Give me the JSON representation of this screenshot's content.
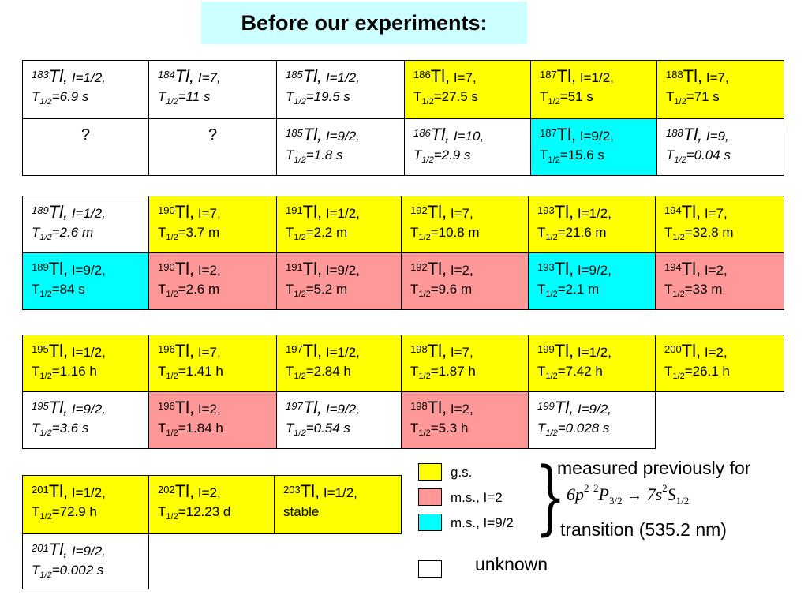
{
  "title": "Before our experiments:",
  "isotope_symbol": "Tl",
  "colors": {
    "ground_state": "#ffff00",
    "ms_i2": "#ff9999",
    "ms_i92": "#00ffff",
    "unknown": "#ffffff",
    "title_bg": "#ccffff"
  },
  "cells": [
    {
      "mass": "183",
      "spin": "I=1/2,",
      "half": "T",
      "halfsub": "1/2",
      "halfval": "=6.9 s",
      "fill": "w",
      "italic": true
    },
    {
      "mass": "184",
      "spin": "I=7,",
      "half": "T",
      "halfsub": "1/2",
      "halfval": "=11 s",
      "fill": "w",
      "italic": true
    },
    {
      "mass": "185",
      "spin": "I=1/2,",
      "half": "T",
      "halfsub": "1/2",
      "halfval": "=19.5 s",
      "fill": "w",
      "italic": true
    },
    {
      "mass": "186",
      "spin": "I=7,",
      "half": "T",
      "halfsub": "1/2",
      "halfval": "=27.5 s",
      "fill": "y",
      "italic": false
    },
    {
      "mass": "187",
      "spin": "I=1/2,",
      "half": "T",
      "halfsub": "1/2",
      "halfval": "=51 s",
      "fill": "y",
      "italic": false
    },
    {
      "mass": "188",
      "spin": "I=7,",
      "half": "T",
      "halfsub": "1/2",
      "halfval": "=71 s",
      "fill": "y",
      "italic": false
    },
    {
      "unknown": "?",
      "fill": "w"
    },
    {
      "unknown": "?",
      "fill": "w"
    },
    {
      "mass": "185",
      "spin": "I=9/2,",
      "half": "T",
      "halfsub": "1/2",
      "halfval": "=1.8 s",
      "fill": "w",
      "italic": true
    },
    {
      "mass": "186",
      "spin": "I=10,",
      "half": "T",
      "halfsub": "1/2",
      "halfval": "=2.9 s",
      "fill": "w",
      "italic": true
    },
    {
      "mass": "187",
      "spin": "I=9/2,",
      "half": "T",
      "halfsub": "1/2",
      "halfval": "=15.6 s",
      "fill": "c",
      "italic": false
    },
    {
      "mass": "188",
      "spin": "I=9,",
      "half": "T",
      "halfsub": "1/2",
      "halfval": "=0.04 s",
      "fill": "w",
      "italic": true
    },
    {
      "mass": "189",
      "spin": "I=1/2,",
      "half": "T",
      "halfsub": "1/2",
      "halfval": "=2.6 m",
      "fill": "w",
      "italic": true
    },
    {
      "mass": "190",
      "spin": "I=7,",
      "half": "T",
      "halfsub": "1/2",
      "halfval": "=3.7 m",
      "fill": "y",
      "italic": false
    },
    {
      "mass": "191",
      "spin": "I=1/2,",
      "half": "T",
      "halfsub": "1/2",
      "halfval": "=2.2 m",
      "fill": "y",
      "italic": false
    },
    {
      "mass": "192",
      "spin": "I=7,",
      "half": "T",
      "halfsub": "1/2",
      "halfval": "=10.8 m",
      "fill": "y",
      "italic": false
    },
    {
      "mass": "193",
      "spin": "I=1/2,",
      "half": "T",
      "halfsub": "1/2",
      "halfval": "=21.6 m",
      "fill": "y",
      "italic": false
    },
    {
      "mass": "194",
      "spin": "I=7,",
      "half": "T",
      "halfsub": "1/2",
      "halfval": "=32.8 m",
      "fill": "y",
      "italic": false
    },
    {
      "mass": "189",
      "spin": "I=9/2,",
      "half": "T",
      "halfsub": "1/2",
      "halfval": "=84 s",
      "fill": "c",
      "italic": false
    },
    {
      "mass": "190",
      "spin": "I=2,",
      "half": "T",
      "halfsub": "1/2",
      "halfval": "=2.6 m",
      "fill": "p",
      "italic": false
    },
    {
      "mass": "191",
      "spin": "I=9/2,",
      "half": "T",
      "halfsub": "1/2",
      "halfval": "=5.2 m",
      "fill": "p",
      "italic": false
    },
    {
      "mass": "192",
      "spin": "I=2,",
      "half": "T",
      "halfsub": "1/2",
      "halfval": "=9.6 m",
      "fill": "p",
      "italic": false
    },
    {
      "mass": "193",
      "spin": "I=9/2,",
      "half": "T",
      "halfsub": "1/2",
      "halfval": "=2.1 m",
      "fill": "c",
      "italic": false
    },
    {
      "mass": "194",
      "spin": "I=2,",
      "half": "T",
      "halfsub": "1/2",
      "halfval": "=33 m",
      "fill": "p",
      "italic": false
    },
    {
      "mass": "195",
      "spin": "I=1/2,",
      "half": "T",
      "halfsub": "1/2",
      "halfval": "=1.16 h",
      "fill": "y",
      "italic": false
    },
    {
      "mass": "196",
      "spin": "I=7,",
      "half": "T",
      "halfsub": "1/2",
      "halfval": "=1.41 h",
      "fill": "y",
      "italic": false
    },
    {
      "mass": "197",
      "spin": "I=1/2,",
      "half": "T",
      "halfsub": "1/2",
      "halfval": "=2.84 h",
      "fill": "y",
      "italic": false
    },
    {
      "mass": "198",
      "spin": "I=7,",
      "half": "T",
      "halfsub": "1/2",
      "halfval": "=1.87 h",
      "fill": "y",
      "italic": false
    },
    {
      "mass": "199",
      "spin": "I=1/2,",
      "half": "T",
      "halfsub": "1/2",
      "halfval": "=7.42 h",
      "fill": "y",
      "italic": false
    },
    {
      "mass": "200",
      "spin": "I=2,",
      "half": "T",
      "halfsub": "1/2",
      "halfval": "=26.1 h",
      "fill": "y",
      "italic": false
    },
    {
      "mass": "195",
      "spin": "I=9/2,",
      "half": "T",
      "halfsub": "1/2",
      "halfval": "=3.6 s",
      "fill": "w",
      "italic": true
    },
    {
      "mass": "196",
      "spin": "I=2,",
      "half": "T",
      "halfsub": "1/2",
      "halfval": "=1.84 h",
      "fill": "p",
      "italic": false
    },
    {
      "mass": "197",
      "spin": "I=9/2,",
      "half": "T",
      "halfsub": "1/2",
      "halfval": "=0.54 s",
      "fill": "w",
      "italic": true
    },
    {
      "mass": "198",
      "spin": "I=2,",
      "half": "T",
      "halfsub": "1/2",
      "halfval": "=5.3 h",
      "fill": "p",
      "italic": false
    },
    {
      "mass": "199",
      "spin": "I=9/2,",
      "half": "T",
      "halfsub": "1/2",
      "halfval": "=0.028 s",
      "fill": "w",
      "italic": true
    },
    {
      "mass": "201",
      "spin": "I=1/2,",
      "half": "T",
      "halfsub": "1/2",
      "halfval": "=72.9 h",
      "fill": "y",
      "italic": false
    },
    {
      "mass": "202",
      "spin": "I=2,",
      "half": "T",
      "halfsub": "1/2",
      "halfval": "=12.23 d",
      "fill": "y",
      "italic": false
    },
    {
      "mass": "203",
      "spin": "I=1/2,",
      "half": "",
      "halfsub": "",
      "halfval": "stable",
      "fill": "y",
      "italic": false
    },
    {
      "mass": "201",
      "spin": "I=9/2,",
      "half": "T",
      "halfsub": "1/2",
      "halfval": "=0.002 s",
      "fill": "w",
      "italic": true
    }
  ],
  "legend": {
    "gs": "g.s.",
    "ms2": "m.s., I=2",
    "ms92": "m.s., I=9/2",
    "unknown": "unknown"
  },
  "note": {
    "line1": "measured previously for",
    "line2": "transition (535.2 nm)",
    "formula": {
      "n1": "6",
      "l1": "p",
      "e1": "2",
      "term1_sup": "2",
      "term1": "P",
      "term1_sub": "3/2",
      "arrow": "→",
      "n2": "7",
      "l2": "s",
      "e2": "2",
      "term2": "S",
      "term2_sub": "1/2"
    }
  }
}
